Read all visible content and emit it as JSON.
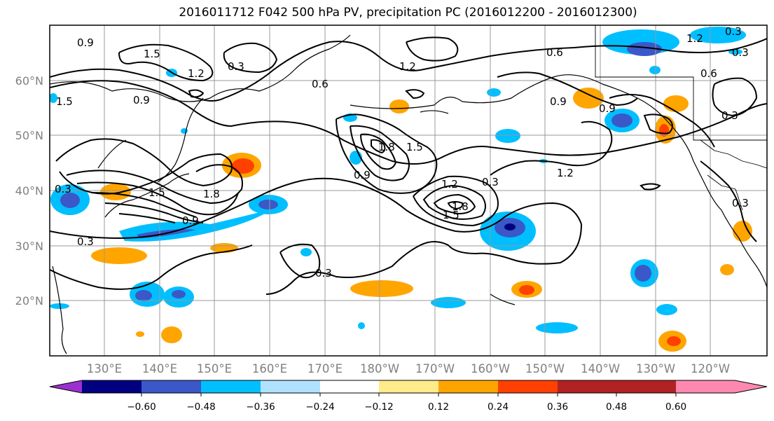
{
  "title": "2016011712 F042 500 hPa PV, precipitation PC (2016012200 - 2016012300)",
  "map": {
    "lat_labels": [
      "60°N",
      "50°N",
      "40°N",
      "30°N",
      "20°N"
    ],
    "lon_labels": [
      "130°E",
      "140°E",
      "150°E",
      "160°E",
      "170°E",
      "180°W",
      "170°W",
      "160°W",
      "150°W",
      "140°W",
      "130°W",
      "120°W"
    ],
    "contour_labels": [
      "0.9",
      "1.5",
      "1.2",
      "0.3",
      "0.6",
      "0.9",
      "1.5",
      "1.2",
      "0.6",
      "0.3",
      "0.9",
      "1.8",
      "1.5",
      "0.9",
      "1.2",
      "0.3",
      "1.8",
      "1.5",
      "0.3",
      "1.2",
      "0.3",
      "0.9",
      "1.8",
      "1.5",
      "0.3",
      "0.9",
      "1.2",
      "0.6",
      "0.3",
      "0.3",
      "0.3"
    ]
  },
  "colorbar": {
    "ticks": [
      "−0.60",
      "−0.48",
      "−0.36",
      "−0.24",
      "−0.12",
      "0.12",
      "0.24",
      "0.36",
      "0.48",
      "0.60"
    ],
    "colors": [
      "#9b30d0",
      "#000080",
      "#3a58c8",
      "#00bfff",
      "#b0e2ff",
      "#ffffff",
      "#ffeb8a",
      "#ffa500",
      "#ff4000",
      "#b22222",
      "#ff88b0"
    ]
  }
}
